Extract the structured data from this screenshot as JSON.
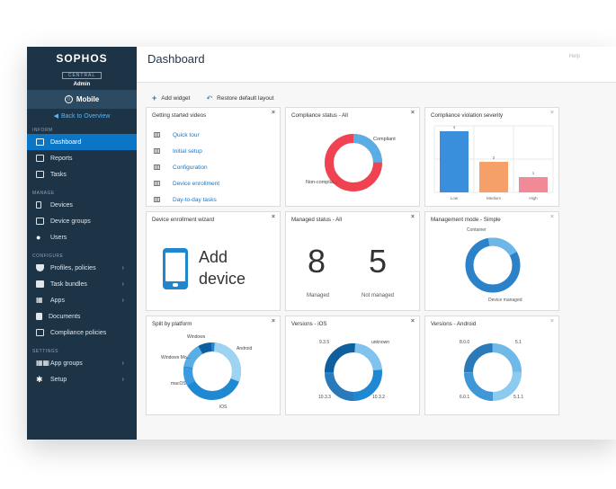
{
  "sidebar": {
    "brand": "SOPHOS",
    "brand_sub": "CENTRAL",
    "brand_role": "Admin",
    "product": "Mobile",
    "back_link": "Back to Overview",
    "sections": {
      "inform": "INFORM",
      "manage": "MANAGE",
      "configure": "CONFIGURE",
      "settings": "SETTINGS"
    },
    "items": {
      "dashboard": "Dashboard",
      "reports": "Reports",
      "tasks": "Tasks",
      "devices": "Devices",
      "device_groups": "Device groups",
      "users": "Users",
      "profiles": "Profiles, policies",
      "task_bundles": "Task bundles",
      "apps": "Apps",
      "documents": "Documents",
      "compliance": "Compliance policies",
      "app_groups": "App groups",
      "setup": "Setup"
    }
  },
  "header": {
    "title": "Dashboard",
    "help": "Help"
  },
  "toolbar": {
    "add_widget": "Add widget",
    "restore_layout": "Restore default layout"
  },
  "widgets": {
    "getting_started": {
      "title": "Getting started videos",
      "links": [
        "Quick tour",
        "Initial setup",
        "Configuration",
        "Device enrollment",
        "Day-to-day tasks"
      ]
    },
    "compliance_status": {
      "title": "Compliance status - All",
      "label_compliant": "Compliant",
      "label_noncompliant": "Non-complia..."
    },
    "violation_severity": {
      "title": "Compliance violation severity",
      "bars": [
        {
          "label": "Low",
          "value": 4,
          "color": "#3a8fdc"
        },
        {
          "label": "Medium",
          "value": 2,
          "color": "#f5a068"
        },
        {
          "label": "High",
          "value": 1,
          "color": "#f08a96"
        }
      ]
    },
    "enrollment": {
      "title": "Device enrollment wizard",
      "line1": "Add",
      "line2": "device"
    },
    "managed_status": {
      "title": "Managed status - All",
      "managed_value": "8",
      "managed_label": "Managed",
      "not_managed_value": "5",
      "not_managed_label": "Not managed"
    },
    "management_mode": {
      "title": "Management mode - Simple",
      "label_container": "Container",
      "label_device": "Device managed"
    },
    "split_platform": {
      "title": "Split by platform",
      "labels": [
        "Windows",
        "Android",
        "Windows Mo...",
        "macOS",
        "iOS"
      ]
    },
    "versions_ios": {
      "title": "Versions - iOS",
      "labels": [
        "9.3.5",
        "unknown",
        "10.3.3",
        "10.3.2"
      ]
    },
    "versions_android": {
      "title": "Versions - Android",
      "labels": [
        "8.0.0",
        "5.1",
        "6.0.1",
        "5.1.1"
      ]
    }
  },
  "colors": {
    "sidebar_bg": "#1d3447",
    "accent": "#0b76c5",
    "red": "#ef4352",
    "blue": "#3a8fdc"
  }
}
